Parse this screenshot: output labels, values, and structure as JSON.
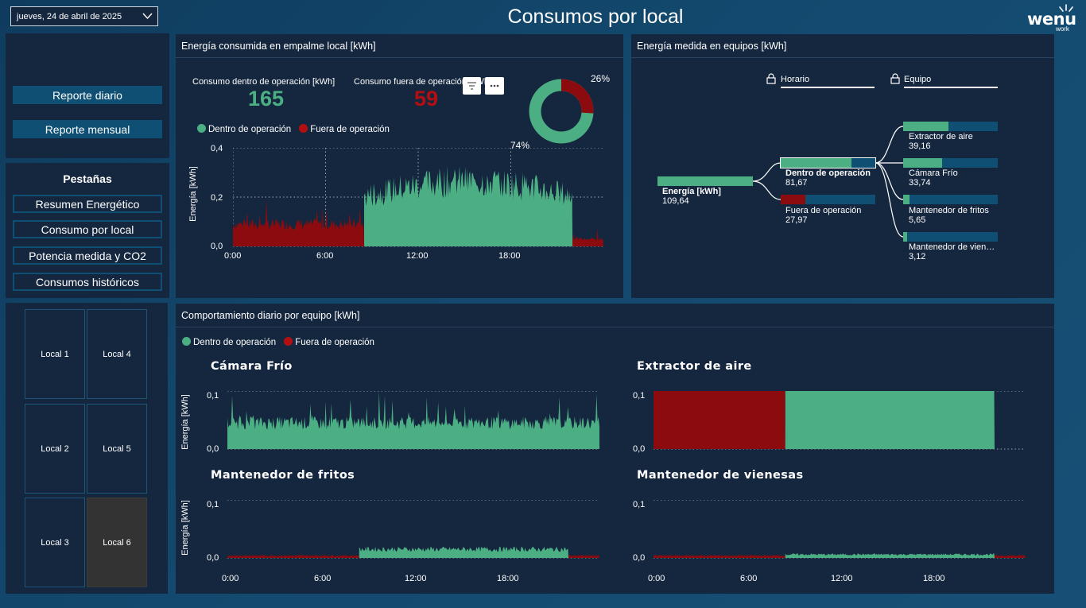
{
  "header": {
    "date": "jueves, 24 de abril de 2025",
    "title": "Consumos por local",
    "logo_main": "wenu",
    "logo_sub": "work"
  },
  "reports": {
    "daily": "Reporte diario",
    "monthly": "Reporte mensual"
  },
  "tabs": {
    "title": "Pestañas",
    "items": [
      "Resumen Energético",
      "Consumo por local",
      "Potencia medida y CO2",
      "Consumos históricos"
    ]
  },
  "locals": [
    "Local 1",
    "Local 4",
    "Local 2",
    "Local 5",
    "Local 3",
    "Local 6"
  ],
  "selected_local": "Local 6",
  "colors": {
    "in_op": "#4caf84",
    "out_op": "#8b0b0e",
    "bg_panel": "#15273f",
    "accent": "#0e4f73"
  },
  "energy_panel": {
    "title": "Energía consumida en empalme local [kWh]",
    "kpi_in_label": "Consumo dentro de operación [kWh]",
    "kpi_in_value": "165",
    "kpi_out_label": "Consumo fuera de operación [kWh]",
    "kpi_out_value": "59",
    "legend_in": "Dentro de operación",
    "legend_out": "Fuera de operación",
    "donut_pct_out": "26%",
    "donut_pct_in": "74%",
    "ylabel": "Energía [kWh]",
    "yticks": [
      "0,4",
      "0,2",
      "0,0"
    ],
    "xticks": [
      "0:00",
      "6:00",
      "12:00",
      "18:00"
    ]
  },
  "equip_panel": {
    "title": "Energía medida en equipos [kWh]",
    "filter_horario": "Horario",
    "filter_equipo": "Equipo",
    "root_label": "Energía [kWh]",
    "root_value": "109,64",
    "nodes": [
      {
        "label": "Dentro de operación",
        "value": "81,67"
      },
      {
        "label": "Fuera de operación",
        "value": "27,97"
      }
    ],
    "leaves": [
      {
        "label": "Extractor de aire",
        "value": "39,16"
      },
      {
        "label": "Cámara Frío",
        "value": "33,74"
      },
      {
        "label": "Mantenedor de fritos",
        "value": "5,65"
      },
      {
        "label": "Mantenedor de vien…",
        "value": "3,12"
      }
    ]
  },
  "daily_panel": {
    "title": "Comportamiento diario por equipo [kWh]",
    "legend_in": "Dentro de operación",
    "legend_out": "Fuera de operación",
    "ylabel": "Energía [kWh]",
    "yticks": [
      "0,1",
      "0,0"
    ],
    "xticks": [
      "0:00",
      "6:00",
      "12:00",
      "18:00"
    ],
    "charts": [
      "Cámara Frío",
      "Extractor de aire",
      "Mantenedor de fritos",
      "Mantenedor de vienesas"
    ]
  },
  "chart_data": [
    {
      "type": "donut",
      "slices": [
        {
          "name": "Dentro de operación",
          "pct": 74
        },
        {
          "name": "Fuera de operación",
          "pct": 26
        }
      ]
    },
    {
      "type": "area",
      "xlabel": "",
      "ylabel": "Energía [kWh]",
      "ylim": [
        0,
        0.4
      ],
      "x_range_hours": [
        0,
        24
      ],
      "series": [
        {
          "name": "Fuera de operación",
          "segment_hours": [
            0,
            8.5
          ],
          "typical_value": 0.09,
          "max_value": 0.2
        },
        {
          "name": "Dentro de operación",
          "segment_hours": [
            8.5,
            22
          ],
          "typical_value": 0.24,
          "max_value": 0.3
        },
        {
          "name": "Fuera de operación",
          "segment_hours": [
            22,
            24
          ],
          "typical_value": 0.03,
          "max_value": 0.08
        }
      ]
    },
    {
      "type": "area",
      "title": "Cámara Frío",
      "ylabel": "Energía [kWh]",
      "ylim": [
        0,
        0.1
      ],
      "series": [
        {
          "name": "Dentro de operación",
          "segment_hours": [
            0,
            24
          ],
          "typical_value": 0.045,
          "max_value": 0.1
        }
      ]
    },
    {
      "type": "area",
      "title": "Extractor de aire",
      "ylabel": "Energía [kWh]",
      "ylim": [
        0,
        0.1
      ],
      "series": [
        {
          "name": "Fuera de operación",
          "segment_hours": [
            0,
            8.5
          ],
          "typical_value": 0.1
        },
        {
          "name": "Dentro de operación",
          "segment_hours": [
            8.5,
            22
          ],
          "typical_value": 0.1
        }
      ]
    },
    {
      "type": "area",
      "title": "Mantenedor de fritos",
      "ylabel": "Energía [kWh]",
      "ylim": [
        0,
        0.1
      ],
      "series": [
        {
          "name": "Fuera de operación",
          "segment_hours": [
            0,
            8.5
          ],
          "typical_value": 0.004
        },
        {
          "name": "Dentro de operación",
          "segment_hours": [
            8.5,
            22
          ],
          "typical_value": 0.015
        },
        {
          "name": "Fuera de operación",
          "segment_hours": [
            22,
            24
          ],
          "typical_value": 0.004
        }
      ]
    },
    {
      "type": "area",
      "title": "Mantenedor de vienesas",
      "ylabel": "Energía [kWh]",
      "ylim": [
        0,
        0.1
      ],
      "series": [
        {
          "name": "Fuera de operación",
          "segment_hours": [
            0,
            8.5
          ],
          "typical_value": 0.004
        },
        {
          "name": "Dentro de operación",
          "segment_hours": [
            8.5,
            22
          ],
          "typical_value": 0.006
        },
        {
          "name": "Fuera de operación",
          "segment_hours": [
            22,
            24
          ],
          "typical_value": 0.004
        }
      ]
    }
  ]
}
